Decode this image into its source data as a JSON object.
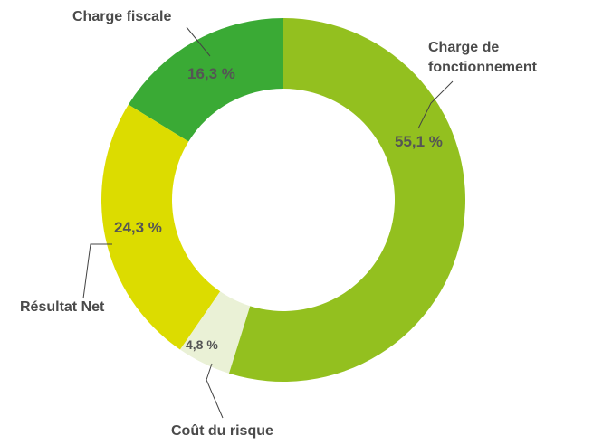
{
  "chart_data": {
    "type": "donut",
    "categories": [
      "Charge de fonctionnement",
      "Coût du risque",
      "Résultat Net",
      "Charge fiscale"
    ],
    "values": [
      55.1,
      4.8,
      24.3,
      16.3
    ],
    "value_labels": [
      "55,1 %",
      "4,8 %",
      "24,3 %",
      "16,3 %"
    ],
    "colors": [
      "#93c01f",
      "#eaf1d6",
      "#dcdc00",
      "#3aaa35"
    ]
  }
}
